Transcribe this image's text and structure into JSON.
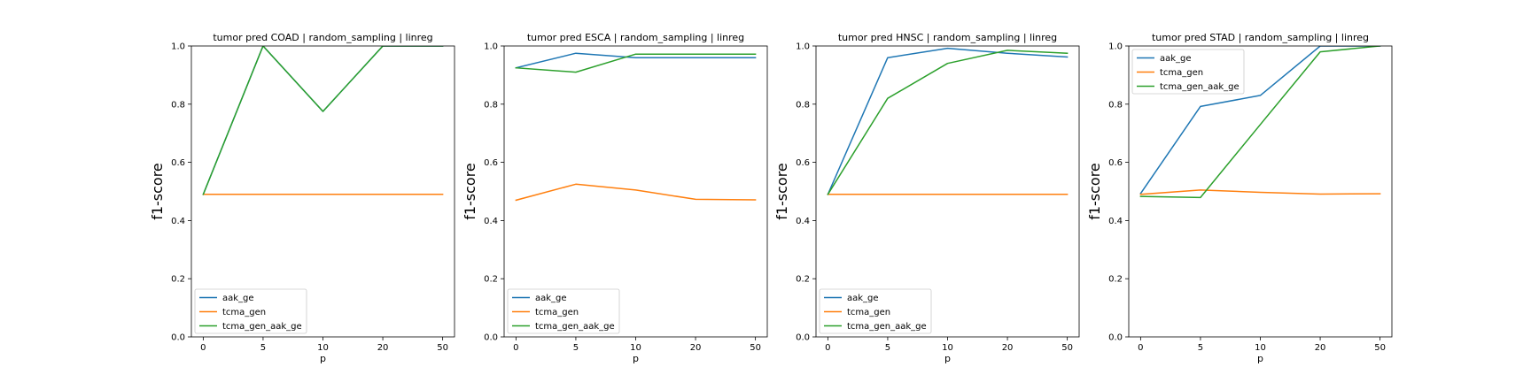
{
  "chart_data": [
    {
      "type": "line",
      "title": "tumor pred COAD | random_sampling | linreg",
      "xlabel": "p",
      "ylabel": "f1-score",
      "categories": [
        "0",
        "5",
        "10",
        "20",
        "50"
      ],
      "ylim": [
        0.0,
        1.0
      ],
      "yticks": [
        "0.0",
        "0.2",
        "0.4",
        "0.6",
        "0.8",
        "1.0"
      ],
      "legend_position": "lower-left",
      "series": [
        {
          "name": "aak_ge",
          "color": "#1f77b4",
          "values": [
            0.49,
            1.0,
            0.775,
            1.0,
            1.0
          ]
        },
        {
          "name": "tcma_gen",
          "color": "#ff7f0e",
          "values": [
            0.49,
            0.49,
            0.49,
            0.49,
            0.49
          ]
        },
        {
          "name": "tcma_gen_aak_ge",
          "color": "#2ca02c",
          "values": [
            0.49,
            1.0,
            0.775,
            1.0,
            1.0
          ]
        }
      ]
    },
    {
      "type": "line",
      "title": "tumor pred ESCA | random_sampling | linreg",
      "xlabel": "p",
      "ylabel": "f1-score",
      "categories": [
        "0",
        "5",
        "10",
        "20",
        "50"
      ],
      "ylim": [
        0.0,
        1.0
      ],
      "yticks": [
        "0.0",
        "0.2",
        "0.4",
        "0.6",
        "0.8",
        "1.0"
      ],
      "legend_position": "lower-left",
      "series": [
        {
          "name": "aak_ge",
          "color": "#1f77b4",
          "values": [
            0.925,
            0.975,
            0.96,
            0.96,
            0.96
          ]
        },
        {
          "name": "tcma_gen",
          "color": "#ff7f0e",
          "values": [
            0.47,
            0.525,
            0.505,
            0.473,
            0.471
          ]
        },
        {
          "name": "tcma_gen_aak_ge",
          "color": "#2ca02c",
          "values": [
            0.925,
            0.91,
            0.972,
            0.972,
            0.972
          ]
        }
      ]
    },
    {
      "type": "line",
      "title": "tumor pred HNSC | random_sampling | linreg",
      "xlabel": "p",
      "ylabel": "f1-score",
      "categories": [
        "0",
        "5",
        "10",
        "20",
        "50"
      ],
      "ylim": [
        0.0,
        1.0
      ],
      "yticks": [
        "0.0",
        "0.2",
        "0.4",
        "0.6",
        "0.8",
        "1.0"
      ],
      "legend_position": "lower-left",
      "series": [
        {
          "name": "aak_ge",
          "color": "#1f77b4",
          "values": [
            0.49,
            0.96,
            0.992,
            0.975,
            0.962
          ]
        },
        {
          "name": "tcma_gen",
          "color": "#ff7f0e",
          "values": [
            0.49,
            0.49,
            0.49,
            0.49,
            0.49
          ]
        },
        {
          "name": "tcma_gen_aak_ge",
          "color": "#2ca02c",
          "values": [
            0.49,
            0.82,
            0.94,
            0.985,
            0.975
          ]
        }
      ]
    },
    {
      "type": "line",
      "title": "tumor pred STAD | random_sampling | linreg",
      "xlabel": "p",
      "ylabel": "f1-score",
      "categories": [
        "0",
        "5",
        "10",
        "20",
        "50"
      ],
      "ylim": [
        0.0,
        1.0
      ],
      "yticks": [
        "0.0",
        "0.2",
        "0.4",
        "0.6",
        "0.8",
        "1.0"
      ],
      "legend_position": "upper-left",
      "series": [
        {
          "name": "aak_ge",
          "color": "#1f77b4",
          "values": [
            0.493,
            0.792,
            0.83,
            1.0,
            1.0
          ]
        },
        {
          "name": "tcma_gen",
          "color": "#ff7f0e",
          "values": [
            0.49,
            0.505,
            0.497,
            0.491,
            0.492
          ]
        },
        {
          "name": "tcma_gen_aak_ge",
          "color": "#2ca02c",
          "values": [
            0.483,
            0.479,
            0.73,
            0.98,
            1.0
          ]
        }
      ]
    }
  ]
}
